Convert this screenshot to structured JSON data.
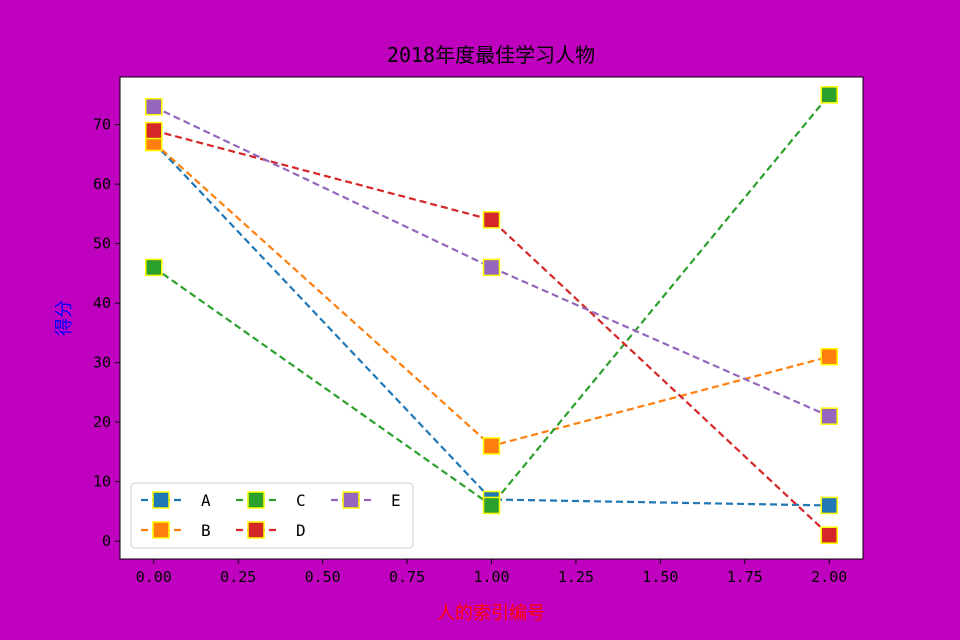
{
  "chart_data": {
    "type": "line",
    "title": "2018年度最佳学习人物",
    "xlabel": "人的索引编号",
    "ylabel": "得分",
    "xlim": [
      -0.1,
      2.1
    ],
    "ylim": [
      -3,
      78
    ],
    "x": [
      0,
      1,
      2
    ],
    "xticks": [
      "0.00",
      "0.25",
      "0.50",
      "0.75",
      "1.00",
      "1.25",
      "1.50",
      "1.75",
      "2.00"
    ],
    "yticks": [
      "0",
      "10",
      "20",
      "30",
      "40",
      "50",
      "60",
      "70"
    ],
    "grid": false,
    "legend_position": "lower-left",
    "line_style": "dashed",
    "marker": "square",
    "marker_edge_color": "#ffff00",
    "series": [
      {
        "name": "A",
        "color": "#1f77b4",
        "values": [
          67,
          7,
          6
        ]
      },
      {
        "name": "B",
        "color": "#ff7f0e",
        "values": [
          67,
          16,
          31
        ]
      },
      {
        "name": "C",
        "color": "#2ca02c",
        "values": [
          46,
          6,
          75
        ]
      },
      {
        "name": "D",
        "color": "#d62728",
        "values": [
          69,
          54,
          1
        ]
      },
      {
        "name": "E",
        "color": "#9467bd",
        "values": [
          73,
          46,
          21
        ]
      }
    ],
    "colors": {
      "figure_background": "#bf00bf",
      "plot_background": "#ffffff",
      "xlabel_color": "#ff0000",
      "ylabel_color": "#0000ff"
    }
  }
}
